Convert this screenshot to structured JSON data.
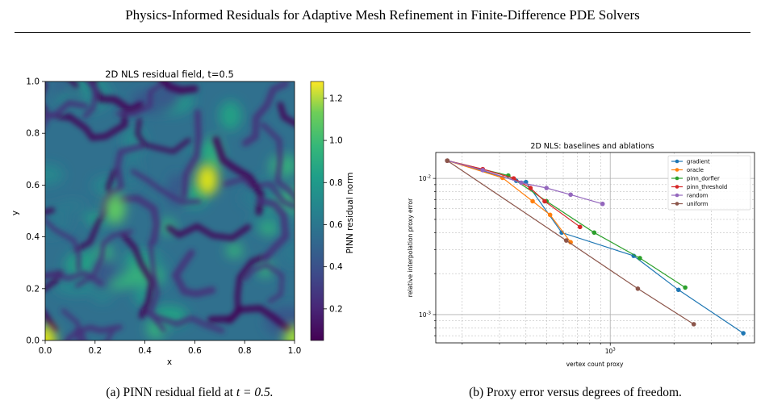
{
  "running_head": "Physics-Informed Residuals for Adaptive Mesh Refinement in Finite-Difference PDE Solvers",
  "captions": {
    "a_label": "(a) PINN residual field at",
    "a_math": "t = 0.5.",
    "b": "(b) Proxy error versus degrees of freedom."
  },
  "chart_data": [
    {
      "type": "heatmap",
      "title": "2D NLS residual field, t=0.5",
      "xlabel": "x",
      "ylabel": "y",
      "xlim": [
        0,
        1
      ],
      "ylim": [
        0,
        1
      ],
      "x_ticks": [
        "0.0",
        "0.2",
        "0.4",
        "0.6",
        "0.8",
        "1.0"
      ],
      "y_ticks": [
        "0.0",
        "0.2",
        "0.4",
        "0.6",
        "0.8",
        "1.0"
      ],
      "colorbar": {
        "label": "PINN residual norm",
        "range": [
          0.05,
          1.28
        ],
        "ticks": [
          "0.2",
          "0.4",
          "0.6",
          "0.8",
          "1.0",
          "1.2"
        ],
        "colormap": "viridis"
      },
      "hotspots": [
        {
          "x": 0.65,
          "y": 0.62,
          "value": 1.22
        },
        {
          "x": 0.28,
          "y": 0.51,
          "value": 0.95
        },
        {
          "x": 0.0,
          "y": 0.0,
          "value": 1.2
        },
        {
          "x": 1.0,
          "y": 0.0,
          "value": 1.1
        }
      ]
    },
    {
      "type": "line",
      "title": "2D NLS: baselines and ablations",
      "xlabel": "vertex count proxy",
      "ylabel": "relative interpolation proxy error",
      "xscale": "log",
      "yscale": "log",
      "xlim": [
        150,
        4800
      ],
      "ylim": [
        0.00062,
        0.0155
      ],
      "x_tick_labels": [
        "10^3"
      ],
      "y_tick_labels": [
        "10^-3",
        "10^-2"
      ],
      "grid": true,
      "legend": "top-right",
      "series": [
        {
          "name": "gradient",
          "color": "#1f77b4",
          "x": [
            170,
            360,
            400,
            590,
            1290,
            2100,
            4250
          ],
          "y": [
            0.0135,
            0.0096,
            0.0094,
            0.004,
            0.0027,
            0.00152,
            0.00073
          ]
        },
        {
          "name": "oracle",
          "color": "#ff7f0e",
          "x": [
            170,
            310,
            430,
            520,
            650
          ],
          "y": [
            0.0135,
            0.0101,
            0.0068,
            0.0054,
            0.0034
          ]
        },
        {
          "name": "pinn_dorfler",
          "color": "#2ca02c",
          "x": [
            170,
            330,
            500,
            840,
            1380,
            2260
          ],
          "y": [
            0.0135,
            0.0105,
            0.0068,
            0.004,
            0.0026,
            0.00158
          ]
        },
        {
          "name": "pinn_threshold",
          "color": "#d62728",
          "x": [
            170,
            250,
            350,
            420,
            490,
            720
          ],
          "y": [
            0.0135,
            0.0117,
            0.01,
            0.0085,
            0.0068,
            0.0044
          ]
        },
        {
          "name": "random",
          "color": "#9467bd",
          "x": [
            170,
            250,
            380,
            500,
            650,
            920
          ],
          "y": [
            0.0135,
            0.0115,
            0.0093,
            0.0085,
            0.0076,
            0.0065
          ]
        },
        {
          "name": "uniform",
          "color": "#8c564b",
          "x": [
            170,
            620,
            1350,
            2480
          ],
          "y": [
            0.0135,
            0.0035,
            0.00155,
            0.00085
          ]
        }
      ]
    }
  ]
}
